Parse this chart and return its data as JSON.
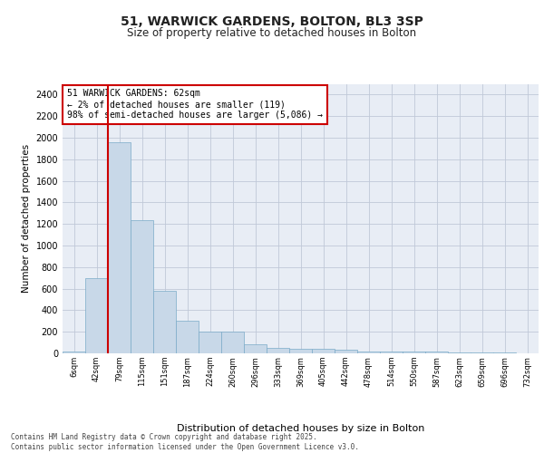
{
  "title": "51, WARWICK GARDENS, BOLTON, BL3 3SP",
  "subtitle": "Size of property relative to detached houses in Bolton",
  "xlabel": "Distribution of detached houses by size in Bolton",
  "ylabel": "Number of detached properties",
  "bar_color": "#c8d8e8",
  "bar_edge_color": "#7aaac8",
  "grid_color": "#c0c8d8",
  "bg_color": "#e8edf5",
  "annotation_box_color": "#cc0000",
  "vline_color": "#cc0000",
  "annotation_text": "51 WARWICK GARDENS: 62sqm\n← 2% of detached houses are smaller (119)\n98% of semi-detached houses are larger (5,086) →",
  "footer": "Contains HM Land Registry data © Crown copyright and database right 2025.\nContains public sector information licensed under the Open Government Licence v3.0.",
  "bins": [
    "6sqm",
    "42sqm",
    "79sqm",
    "115sqm",
    "151sqm",
    "187sqm",
    "224sqm",
    "260sqm",
    "296sqm",
    "333sqm",
    "369sqm",
    "405sqm",
    "442sqm",
    "478sqm",
    "514sqm",
    "550sqm",
    "587sqm",
    "623sqm",
    "659sqm",
    "696sqm",
    "732sqm"
  ],
  "values": [
    15,
    700,
    1960,
    1235,
    580,
    305,
    205,
    200,
    80,
    48,
    38,
    38,
    35,
    20,
    20,
    20,
    20,
    5,
    5,
    5,
    0
  ],
  "ylim": [
    0,
    2500
  ],
  "yticks": [
    0,
    200,
    400,
    600,
    800,
    1000,
    1200,
    1400,
    1600,
    1800,
    2000,
    2200,
    2400
  ]
}
